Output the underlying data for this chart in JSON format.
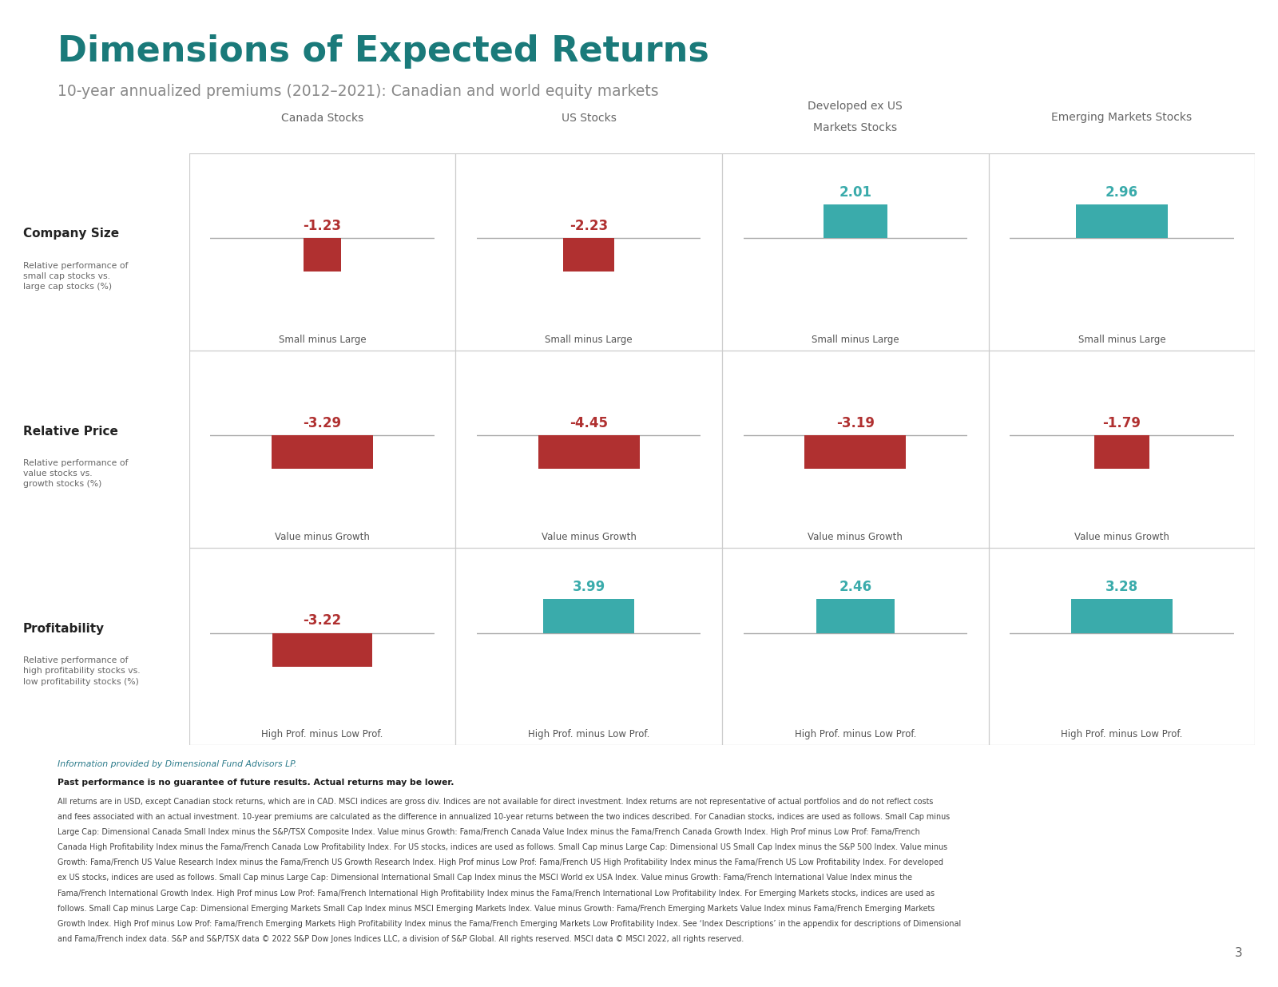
{
  "title": "Dimensions of Expected Returns",
  "subtitle": "10-year annualized premiums (2012–2021): Canadian and world equity markets",
  "title_color": "#1a7a7a",
  "subtitle_color": "#888888",
  "col_headers": [
    "Canada Stocks",
    "US Stocks",
    "Developed ex US\nMarkets Stocks",
    "Emerging Markets Stocks"
  ],
  "row_labels": [
    "Company Size",
    "Relative Price",
    "Profitability"
  ],
  "row_sublabels": [
    "Relative performance of\nsmall cap stocks vs.\nlarge cap stocks (%)",
    "Relative performance of\nvalue stocks vs.\ngrowth stocks (%)",
    "Relative performance of\nhigh profitability stocks vs.\nlow profitability stocks (%)"
  ],
  "bottom_labels": [
    [
      "Small minus Large",
      "Small minus Large",
      "Small minus Large",
      "Small minus Large"
    ],
    [
      "Value minus Growth",
      "Value minus Growth",
      "Value minus Growth",
      "Value minus Growth"
    ],
    [
      "High Prof. minus Low Prof.",
      "High Prof. minus Low Prof.",
      "High Prof. minus Low Prof.",
      "High Prof. minus Low Prof."
    ]
  ],
  "values": [
    [
      -1.23,
      -2.23,
      2.01,
      2.96
    ],
    [
      -3.29,
      -4.45,
      -3.19,
      -1.79
    ],
    [
      -3.22,
      3.99,
      2.46,
      3.28
    ]
  ],
  "negative_color": "#b03030",
  "positive_color": "#3aabab",
  "grid_color": "#cccccc",
  "background_color": "#ffffff",
  "footnote_link_color": "#2a7a8a",
  "page_number": "3",
  "footnote_lines": [
    "Information provided by Dimensional Fund Advisors LP.",
    "Past performance is no guarantee of future results. Actual returns may be lower.",
    "All returns are in USD, except Canadian stock returns, which are in CAD. MSCI indices are gross div. Indices are not available for direct investment. Index returns are not representative of actual portfolios and do not reflect costs",
    "and fees associated with an actual investment. 10-year premiums are calculated as the difference in annualized 10-year returns between the two indices described. For Canadian stocks, indices are used as follows. Small Cap minus",
    "Large Cap: Dimensional Canada Small Index minus the S&P/TSX Composite Index. Value minus Growth: Fama/French Canada Value Index minus the Fama/French Canada Growth Index. High Prof minus Low Prof: Fama/French",
    "Canada High Profitability Index minus the Fama/French Canada Low Profitability Index. For US stocks, indices are used as follows. Small Cap minus Large Cap: Dimensional US Small Cap Index minus the S&P 500 Index. Value minus",
    "Growth: Fama/French US Value Research Index minus the Fama/French US Growth Research Index. High Prof minus Low Prof: Fama/French US High Profitability Index minus the Fama/French US Low Profitability Index. For developed",
    "ex US stocks, indices are used as follows. Small Cap minus Large Cap: Dimensional International Small Cap Index minus the MSCI World ex USA Index. Value minus Growth: Fama/French International Value Index minus the",
    "Fama/French International Growth Index. High Prof minus Low Prof: Fama/French International High Profitability Index minus the Fama/French International Low Profitability Index. For Emerging Markets stocks, indices are used as",
    "follows. Small Cap minus Large Cap: Dimensional Emerging Markets Small Cap Index minus MSCI Emerging Markets Index. Value minus Growth: Fama/French Emerging Markets Value Index minus Fama/French Emerging Markets",
    "Growth Index. High Prof minus Low Prof: Fama/French Emerging Markets High Profitability Index minus the Fama/French Emerging Markets Low Profitability Index. See ‘Index Descriptions’ in the appendix for descriptions of Dimensional",
    "and Fama/French index data. S&P and S&P/TSX data © 2022 S&P Dow Jones Indices LLC, a division of S&P Global. All rights reserved. MSCI data © MSCI 2022, all rights reserved."
  ]
}
